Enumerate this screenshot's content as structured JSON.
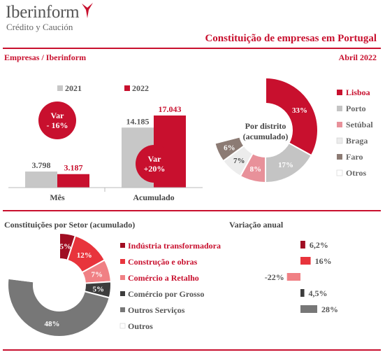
{
  "header": {
    "logo_name": "Iberinform",
    "logo_sub": "Crédito y Caución",
    "title": "Constituição de empresas em Portugal",
    "section_left": "Empresas / Iberinform",
    "date": "Abril 2022"
  },
  "colors": {
    "accent": "#c8102e",
    "grey": "#c7c7c7"
  },
  "chart_data": [
    {
      "type": "bar",
      "categories": [
        "Mês",
        "Acumulado"
      ],
      "series": [
        {
          "name": "2021",
          "values": [
            3798,
            14185
          ],
          "labels": [
            "3.798",
            "14.185"
          ],
          "color": "#c7c7c7"
        },
        {
          "name": "2022",
          "values": [
            3187,
            17043
          ],
          "labels": [
            "3.187",
            "17.043"
          ],
          "color": "#c8102e"
        }
      ],
      "ylim": [
        0,
        17043
      ],
      "annotations": [
        {
          "category": "Mês",
          "lines": [
            "Var",
            "- 16%"
          ]
        },
        {
          "category": "Acumulado",
          "lines": [
            "Var",
            "+20%"
          ]
        }
      ],
      "legend_placement": "top"
    },
    {
      "type": "pie",
      "subtype": "donut",
      "center_label": [
        "Por distrito",
        "(acumulado)"
      ],
      "slices": [
        {
          "name": "Lisboa",
          "value": 33,
          "label": "33%",
          "color": "#c8102e"
        },
        {
          "name": "Porto",
          "value": 17,
          "label": "17%",
          "color": "#c4c4c4"
        },
        {
          "name": "Setúbal",
          "value": 8,
          "label": "8%",
          "color": "#e8919a"
        },
        {
          "name": "Braga",
          "value": 7,
          "label": "7%",
          "color": "#ececec"
        },
        {
          "name": "Faro",
          "value": 6,
          "label": "6%",
          "color": "#8c7b74"
        },
        {
          "name": "Otros",
          "value": 29,
          "label": "",
          "color": "#ffffff"
        }
      ],
      "legend_placement": "right"
    },
    {
      "type": "pie",
      "subtype": "donut",
      "title": "Constituições por Setor (acumulado)",
      "slices": [
        {
          "name": "Indústria transformadora",
          "value": 5,
          "label": "5%",
          "color": "#a00d22"
        },
        {
          "name": "Construção e obras",
          "value": 12,
          "label": "12%",
          "color": "#e8343c"
        },
        {
          "name": "Comércio a Retalho",
          "value": 7,
          "label": "7%",
          "color": "#f08084"
        },
        {
          "name": "Comércio por Grosso",
          "value": 5,
          "label": "5%",
          "color": "#3d3d3d"
        },
        {
          "name": "Outros Serviços",
          "value": 48,
          "label": "48%",
          "color": "#777777"
        },
        {
          "name": "Outros",
          "value": 23,
          "label": "",
          "color": "#ffffff"
        }
      ],
      "legend_placement": "right"
    },
    {
      "type": "bar",
      "orientation": "horizontal",
      "title": "Variação anual",
      "categories": [
        "Indústria transformadora",
        "Construção e obras",
        "Comércio a Retalho",
        "Comércio por Grosso",
        "Outros Serviços"
      ],
      "values": [
        6.2,
        16,
        -22,
        4.5,
        28
      ],
      "labels": [
        "6,2%",
        "16%",
        "-22%",
        "4,5%",
        "28%"
      ],
      "colors": [
        "#a00d22",
        "#e8343c",
        "#f08084",
        "#3d3d3d",
        "#777777"
      ]
    }
  ]
}
